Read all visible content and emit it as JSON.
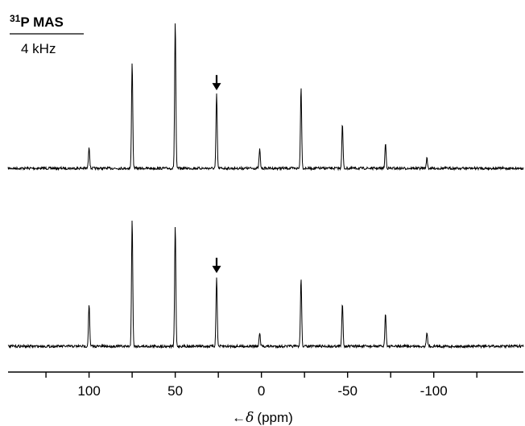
{
  "chart_data": {
    "type": "line",
    "title": "31P MAS",
    "title_superscript": "31",
    "title_main": "P MAS",
    "subtitle": "4 kHz",
    "xlabel_arrow": "←",
    "xlabel_symbol": "δ",
    "xlabel_unit": "(ppm)",
    "xlim": [
      147,
      -152
    ],
    "x_reversed": true,
    "xticks": [
      100,
      50,
      0,
      -50,
      -100
    ],
    "xtick_labels": [
      "100",
      "50",
      "0",
      "-50",
      "-100"
    ],
    "minor_xticks": [
      125,
      75,
      25,
      -25,
      -75,
      -125
    ],
    "grid": false,
    "line_color": "#000000",
    "series": [
      {
        "position": "top",
        "marker_ppm": 26,
        "peaks": [
          {
            "x": 100,
            "y": 0.15
          },
          {
            "x": 75,
            "y": 0.73
          },
          {
            "x": 50,
            "y": 1.0
          },
          {
            "x": 26,
            "y": 0.51
          },
          {
            "x": 1,
            "y": 0.13
          },
          {
            "x": -23,
            "y": 0.55
          },
          {
            "x": -47,
            "y": 0.3
          },
          {
            "x": -72,
            "y": 0.17
          },
          {
            "x": -96,
            "y": 0.07
          }
        ]
      },
      {
        "position": "bottom",
        "marker_ppm": 26,
        "peaks": [
          {
            "x": 100,
            "y": 0.29
          },
          {
            "x": 75,
            "y": 0.88
          },
          {
            "x": 50,
            "y": 0.83
          },
          {
            "x": 26,
            "y": 0.48
          },
          {
            "x": 1,
            "y": 0.09
          },
          {
            "x": -23,
            "y": 0.47
          },
          {
            "x": -47,
            "y": 0.3
          },
          {
            "x": -72,
            "y": 0.23
          },
          {
            "x": -96,
            "y": 0.1
          }
        ]
      }
    ]
  }
}
